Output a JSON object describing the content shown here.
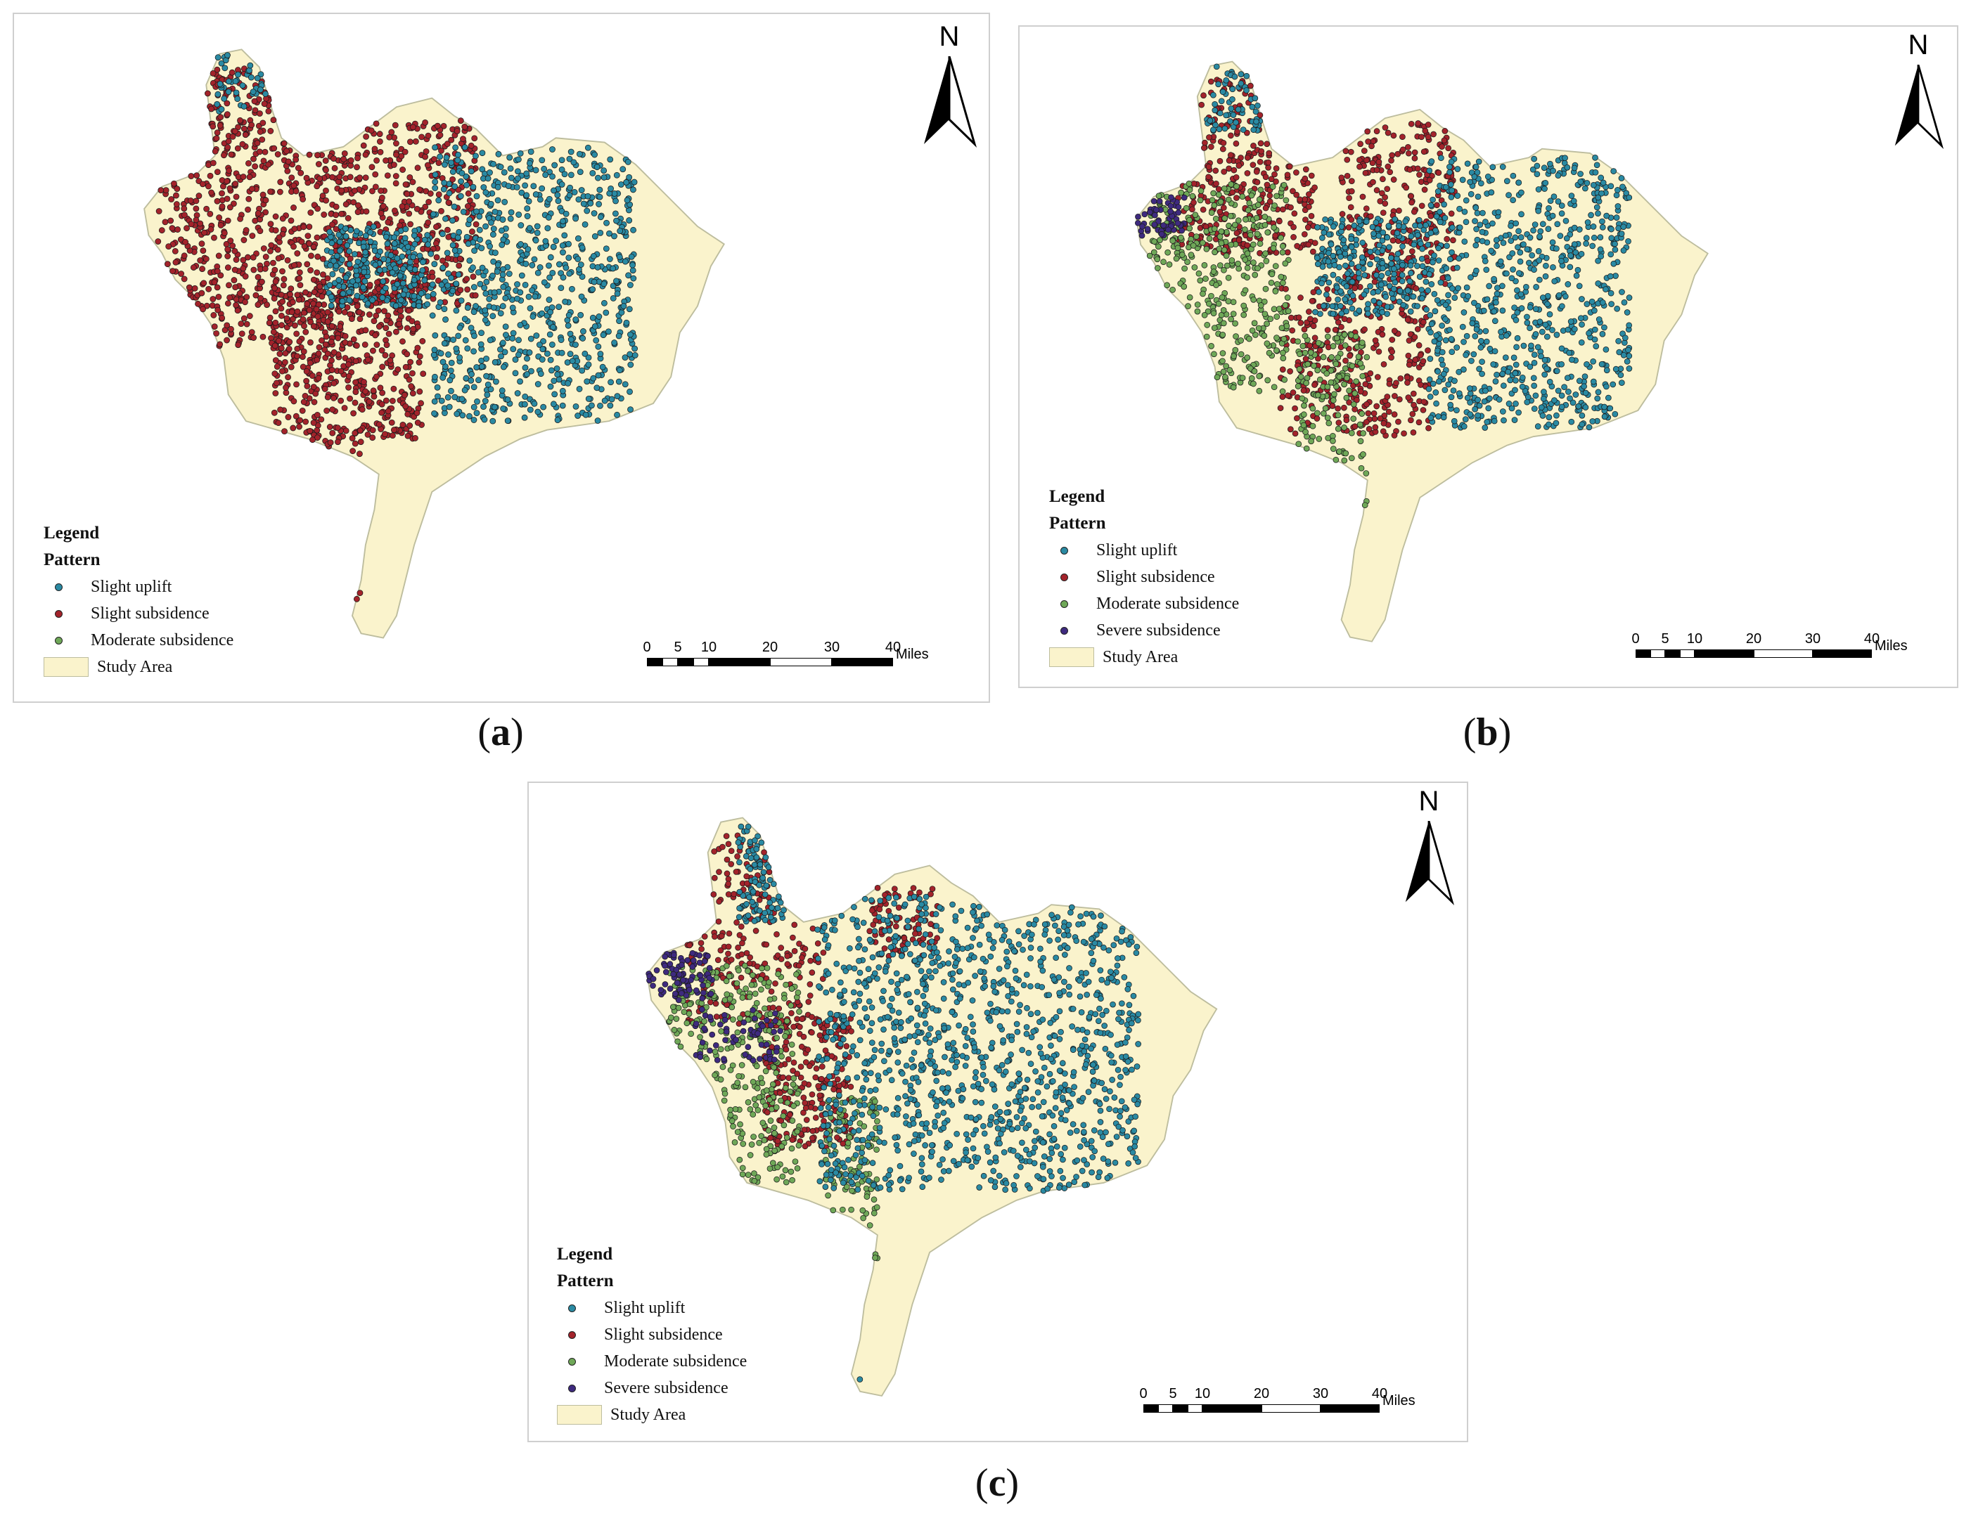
{
  "colors": {
    "slight_uplift": "#2a8aa3",
    "slight_subsidence": "#a3232b",
    "moderate_subsidence": "#6fa858",
    "severe_subsidence": "#3e2a7f",
    "study_area": "#faf3cc",
    "study_area_outline": "#bdbd9e"
  },
  "common": {
    "legend_title": "Legend",
    "legend_subtitle": "Pattern",
    "north_label": "N",
    "scale_ticks": [
      "0",
      "5",
      "10",
      "20",
      "30",
      "40"
    ],
    "scale_unit": "Miles"
  },
  "panels": [
    {
      "caption_open": "(",
      "caption_letter": "a",
      "caption_close": ")",
      "legend_items": [
        {
          "label": "Slight uplift",
          "color_key": "slight_uplift"
        },
        {
          "label": "Slight subsidence",
          "color_key": "slight_subsidence"
        },
        {
          "label": "Moderate subsidence",
          "color_key": "moderate_subsidence"
        }
      ],
      "study_area_label": "Study Area"
    },
    {
      "caption_open": "(",
      "caption_letter": "b",
      "caption_close": ")",
      "legend_items": [
        {
          "label": "Slight uplift",
          "color_key": "slight_uplift"
        },
        {
          "label": "Slight subsidence",
          "color_key": "slight_subsidence"
        },
        {
          "label": "Moderate subsidence",
          "color_key": "moderate_subsidence"
        },
        {
          "label": "Severe subsidence",
          "color_key": "severe_subsidence"
        }
      ],
      "study_area_label": "Study Area"
    },
    {
      "caption_open": "(",
      "caption_letter": "c",
      "caption_close": ")",
      "legend_items": [
        {
          "label": "Slight uplift",
          "color_key": "slight_uplift"
        },
        {
          "label": "Slight subsidence",
          "color_key": "slight_subsidence"
        },
        {
          "label": "Moderate subsidence",
          "color_key": "moderate_subsidence"
        },
        {
          "label": "Severe subsidence",
          "color_key": "severe_subsidence"
        }
      ],
      "study_area_label": "Study Area"
    }
  ]
}
